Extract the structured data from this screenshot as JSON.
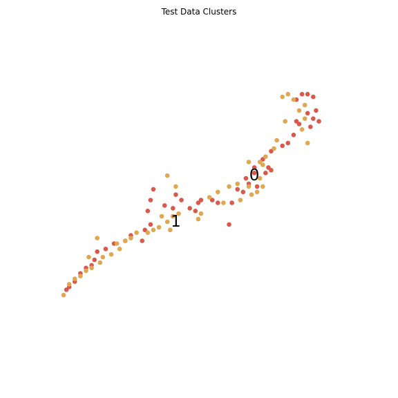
{
  "chart_data": {
    "type": "scatter",
    "title": "Test Data Clusters",
    "xlabel": "",
    "ylabel": "",
    "axes_visible": false,
    "grid": false,
    "xlim": [
      0,
      10
    ],
    "ylim": [
      0,
      10
    ],
    "series": [
      {
        "color": "#d9584b",
        "points": [
          [
            8.7,
            9.0
          ],
          [
            8.9,
            8.9
          ],
          [
            8.5,
            9.0
          ],
          [
            8.3,
            8.8
          ],
          [
            9.0,
            8.4
          ],
          [
            9.1,
            8.0
          ],
          [
            8.8,
            7.8
          ],
          [
            8.4,
            7.9
          ],
          [
            8.3,
            8.0
          ],
          [
            8.9,
            8.1
          ],
          [
            8.7,
            8.3
          ],
          [
            8.2,
            7.5
          ],
          [
            8.0,
            7.2
          ],
          [
            7.8,
            7.1
          ],
          [
            7.4,
            6.9
          ],
          [
            7.1,
            6.6
          ],
          [
            6.8,
            6.3
          ],
          [
            7.2,
            6.1
          ],
          [
            7.3,
            6.3
          ],
          [
            7.4,
            6.2
          ],
          [
            6.8,
            6.1
          ],
          [
            6.5,
            5.9
          ],
          [
            6.6,
            5.7
          ],
          [
            6.4,
            5.4
          ],
          [
            6.2,
            5.5
          ],
          [
            6.0,
            5.0
          ],
          [
            5.5,
            5.0
          ],
          [
            5.3,
            5.1
          ],
          [
            4.9,
            5.1
          ],
          [
            4.8,
            5.0
          ],
          [
            4.2,
            5.1
          ],
          [
            4.5,
            4.8
          ],
          [
            4.7,
            4.7
          ],
          [
            4.0,
            5.3
          ],
          [
            3.9,
            4.8
          ],
          [
            3.6,
            4.9
          ],
          [
            3.2,
            5.5
          ],
          [
            3.1,
            5.1
          ],
          [
            3.0,
            4.7
          ],
          [
            2.9,
            4.0
          ],
          [
            2.4,
            3.8
          ],
          [
            2.2,
            3.6
          ],
          [
            1.8,
            3.5
          ],
          [
            1.5,
            3.3
          ],
          [
            1.1,
            2.9
          ],
          [
            1.0,
            2.7
          ],
          [
            0.8,
            2.6
          ],
          [
            0.6,
            2.4
          ],
          [
            0.4,
            2.1
          ],
          [
            0.2,
            1.9
          ],
          [
            0.1,
            1.8
          ],
          [
            1.2,
            3.2
          ],
          [
            6.9,
            5.6
          ],
          [
            5.9,
            4.2
          ],
          [
            3.1,
            4.2
          ],
          [
            2.8,
            3.6
          ]
        ]
      },
      {
        "color": "#dfa74f",
        "points": [
          [
            8.0,
            9.0
          ],
          [
            8.2,
            8.8
          ],
          [
            8.6,
            8.6
          ],
          [
            7.8,
            8.9
          ],
          [
            8.4,
            8.4
          ],
          [
            8.6,
            8.1
          ],
          [
            8.5,
            7.7
          ],
          [
            7.9,
            8.0
          ],
          [
            7.6,
            7.3
          ],
          [
            7.5,
            7.0
          ],
          [
            7.2,
            6.7
          ],
          [
            7.0,
            6.5
          ],
          [
            7.1,
            6.4
          ],
          [
            7.0,
            5.9
          ],
          [
            7.1,
            5.6
          ],
          [
            6.9,
            5.4
          ],
          [
            6.7,
            5.3
          ],
          [
            6.6,
            5.6
          ],
          [
            6.3,
            5.1
          ],
          [
            5.7,
            5.0
          ],
          [
            5.5,
            5.4
          ],
          [
            5.2,
            5.2
          ],
          [
            4.9,
            4.6
          ],
          [
            4.8,
            4.4
          ],
          [
            4.1,
            4.6
          ],
          [
            3.9,
            4.5
          ],
          [
            3.7,
            4.3
          ],
          [
            3.4,
            4.1
          ],
          [
            3.2,
            4.0
          ],
          [
            3.0,
            3.9
          ],
          [
            2.6,
            3.9
          ],
          [
            2.4,
            3.7
          ],
          [
            2.2,
            3.6
          ],
          [
            2.0,
            3.3
          ],
          [
            1.7,
            3.1
          ],
          [
            1.4,
            3.0
          ],
          [
            1.3,
            2.8
          ],
          [
            1.0,
            2.6
          ],
          [
            0.8,
            2.5
          ],
          [
            0.6,
            2.3
          ],
          [
            0.4,
            2.2
          ],
          [
            0.2,
            2.0
          ],
          [
            0.0,
            1.6
          ],
          [
            1.2,
            3.7
          ],
          [
            3.7,
            6.0
          ],
          [
            4.0,
            5.6
          ],
          [
            3.8,
            4.0
          ],
          [
            3.5,
            4.5
          ],
          [
            0.9,
            3.0
          ],
          [
            5.9,
            5.6
          ],
          [
            6.2,
            5.7
          ],
          [
            8.7,
            7.2
          ],
          [
            1.9,
            3.5
          ],
          [
            6.6,
            6.5
          ]
        ]
      }
    ],
    "annotations": [
      {
        "text": "0",
        "x": 6.8,
        "y": 6.0
      },
      {
        "text": "1",
        "x": 4.0,
        "y": 4.3
      }
    ]
  }
}
